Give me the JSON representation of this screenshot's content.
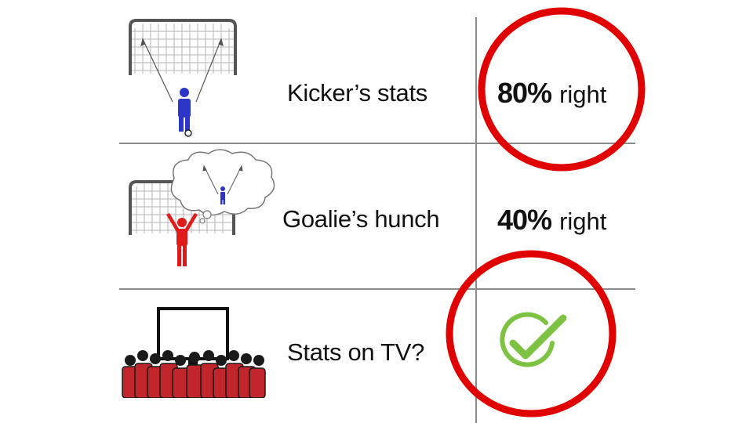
{
  "rows": [
    {
      "label": "Kicker’s stats",
      "stat_value": "80%",
      "stat_word": "right",
      "icon": "kicker-goal-icon",
      "highlighted": true
    },
    {
      "label": "Goalie’s hunch",
      "stat_value": "40%",
      "stat_word": "right",
      "icon": "goalie-thought-icon",
      "highlighted": false
    },
    {
      "label": "Stats on TV?",
      "stat_value": "",
      "stat_word": "",
      "icon": "crowd-tv-icon",
      "highlighted": true,
      "result_icon": "checkmark-icon"
    }
  ],
  "colors": {
    "highlight_circle": "#e00000",
    "checkmark": "#7dc242",
    "kicker": "#2b35c7",
    "goalie": "#e01b1b",
    "crowd": "#c0262c",
    "grid": "#8a8a8a"
  }
}
